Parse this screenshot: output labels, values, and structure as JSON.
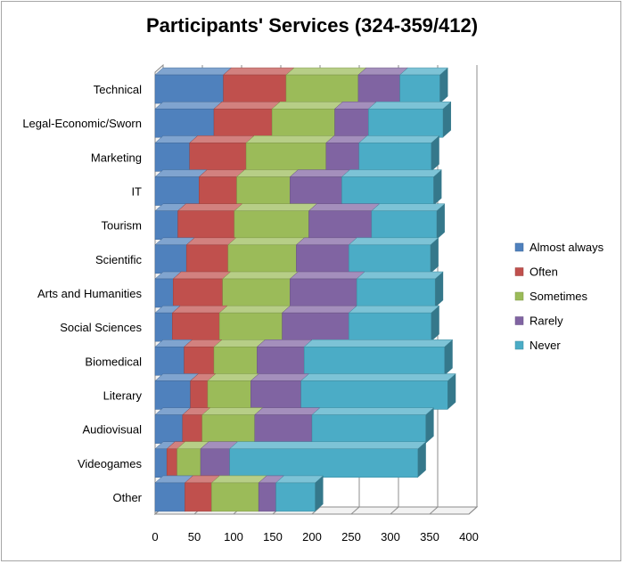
{
  "chart_data": {
    "type": "bar",
    "orientation": "horizontal",
    "stacked": true,
    "title": "Participants' Services (324-359/412)",
    "xlabel": "",
    "ylabel": "",
    "xlim": [
      0,
      400
    ],
    "xticks": [
      0,
      50,
      100,
      150,
      200,
      250,
      300,
      350,
      400
    ],
    "grid": true,
    "legend_position": "right",
    "categories": [
      "Technical",
      "Legal-Economic/Sworn",
      "Marketing",
      "IT",
      "Tourism",
      "Scientific",
      "Arts and Humanities",
      "Social Sciences",
      "Biomedical",
      "Literary",
      "Audiovisual",
      "Videogames",
      "Other"
    ],
    "series": [
      {
        "name": "Almost always",
        "color": "#4f81bd",
        "values": [
          87,
          75,
          44,
          56,
          29,
          40,
          23,
          22,
          37,
          45,
          35,
          15,
          38
        ]
      },
      {
        "name": "Often",
        "color": "#c0504d",
        "values": [
          80,
          74,
          72,
          48,
          72,
          53,
          63,
          60,
          38,
          22,
          25,
          13,
          34
        ]
      },
      {
        "name": "Sometimes",
        "color": "#9bbb59",
        "values": [
          92,
          80,
          102,
          68,
          95,
          87,
          86,
          80,
          55,
          55,
          67,
          30,
          60
        ]
      },
      {
        "name": "Rarely",
        "color": "#8064a2",
        "values": [
          53,
          43,
          42,
          66,
          80,
          67,
          85,
          85,
          60,
          64,
          73,
          37,
          22
        ]
      },
      {
        "name": "Never",
        "color": "#4bacc6",
        "values": [
          51,
          95,
          92,
          117,
          83,
          104,
          100,
          105,
          179,
          187,
          145,
          240,
          50
        ]
      }
    ]
  }
}
